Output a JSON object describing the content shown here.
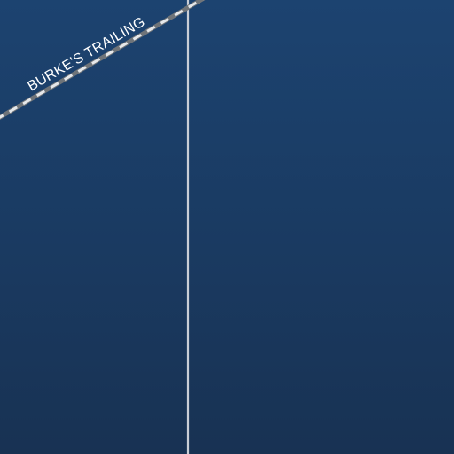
{
  "map": {
    "background_color": "#1b3d66",
    "features": [
      {
        "kind": "trail",
        "label": "BURKE'S TRAILING",
        "style": "dashed-gray-white"
      },
      {
        "kind": "boundary-line",
        "style": "solid-light-gray"
      }
    ]
  }
}
